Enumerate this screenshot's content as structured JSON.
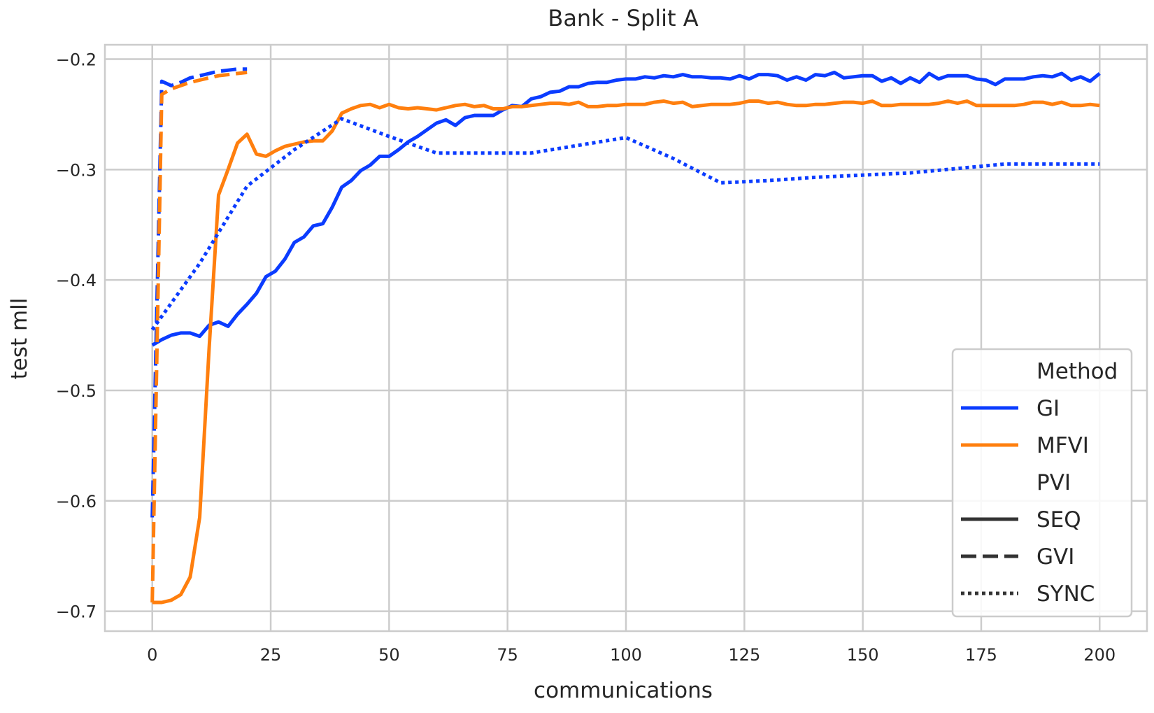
{
  "chart_data": {
    "type": "line",
    "title": "Bank - Split A",
    "xlabel": "communications",
    "ylabel": "test mll",
    "xlim": [
      -10,
      210
    ],
    "ylim": [
      -0.718,
      -0.187
    ],
    "xticks": [
      0,
      25,
      50,
      75,
      100,
      125,
      150,
      175,
      200
    ],
    "xtick_labels": [
      "0",
      "25",
      "50",
      "75",
      "100",
      "125",
      "150",
      "175",
      "200"
    ],
    "yticks": [
      -0.2,
      -0.3,
      -0.4,
      -0.5,
      -0.6,
      -0.7
    ],
    "ytick_labels": [
      "−0.2",
      "−0.3",
      "−0.4",
      "−0.5",
      "−0.6",
      "−0.7"
    ],
    "grid": true,
    "legend": {
      "position": "lower-right",
      "entries": [
        {
          "label": "Method",
          "kind": "header"
        },
        {
          "label": "GI",
          "kind": "color",
          "color": "#0b3cff"
        },
        {
          "label": "MFVI",
          "kind": "color",
          "color": "#ff7f0e"
        },
        {
          "label": "PVI",
          "kind": "header"
        },
        {
          "label": "SEQ",
          "kind": "style",
          "style": "solid"
        },
        {
          "label": "GVI",
          "kind": "style",
          "style": "dashed"
        },
        {
          "label": "SYNC",
          "kind": "style",
          "style": "dotted"
        }
      ]
    },
    "colors": {
      "GI": "#0b3cff",
      "MFVI": "#ff7f0e",
      "style_sample": "#333333",
      "grid": "#cccccc"
    },
    "series": [
      {
        "method": "GI",
        "pvi": "SEQ",
        "color": "#0b3cff",
        "style": "solid",
        "x": [
          0,
          2,
          4,
          6,
          8,
          10,
          12,
          14,
          16,
          18,
          20,
          22,
          24,
          26,
          28,
          30,
          32,
          34,
          36,
          38,
          40,
          42,
          44,
          46,
          48,
          50,
          52,
          54,
          56,
          58,
          60,
          62,
          64,
          66,
          68,
          70,
          72,
          74,
          76,
          78,
          80,
          82,
          84,
          86,
          88,
          90,
          92,
          94,
          96,
          98,
          100,
          102,
          104,
          106,
          108,
          110,
          112,
          114,
          116,
          118,
          120,
          122,
          124,
          126,
          128,
          130,
          132,
          134,
          136,
          138,
          140,
          142,
          144,
          146,
          148,
          150,
          152,
          154,
          156,
          158,
          160,
          162,
          164,
          166,
          168,
          170,
          172,
          174,
          176,
          178,
          180,
          182,
          184,
          186,
          188,
          190,
          192,
          194,
          196,
          198,
          200
        ],
        "y": [
          -0.459,
          -0.454,
          -0.45,
          -0.448,
          -0.448,
          -0.451,
          -0.441,
          -0.438,
          -0.442,
          -0.431,
          -0.422,
          -0.412,
          -0.397,
          -0.392,
          -0.381,
          -0.366,
          -0.361,
          -0.351,
          -0.349,
          -0.334,
          -0.316,
          -0.31,
          -0.301,
          -0.296,
          -0.288,
          -0.288,
          -0.282,
          -0.275,
          -0.27,
          -0.264,
          -0.258,
          -0.255,
          -0.26,
          -0.253,
          -0.251,
          -0.251,
          -0.251,
          -0.246,
          -0.242,
          -0.243,
          -0.236,
          -0.234,
          -0.23,
          -0.229,
          -0.225,
          -0.225,
          -0.222,
          -0.221,
          -0.221,
          -0.219,
          -0.218,
          -0.218,
          -0.216,
          -0.217,
          -0.215,
          -0.216,
          -0.214,
          -0.216,
          -0.216,
          -0.217,
          -0.217,
          -0.218,
          -0.215,
          -0.218,
          -0.214,
          -0.214,
          -0.215,
          -0.219,
          -0.216,
          -0.219,
          -0.214,
          -0.215,
          -0.212,
          -0.217,
          -0.216,
          -0.215,
          -0.215,
          -0.22,
          -0.217,
          -0.222,
          -0.217,
          -0.221,
          -0.213,
          -0.218,
          -0.215,
          -0.215,
          -0.215,
          -0.218,
          -0.219,
          -0.223,
          -0.218,
          -0.218,
          -0.218,
          -0.216,
          -0.215,
          -0.216,
          -0.213,
          -0.219,
          -0.216,
          -0.22,
          -0.213
        ]
      },
      {
        "method": "MFVI",
        "pvi": "SEQ",
        "color": "#ff7f0e",
        "style": "solid",
        "x": [
          0,
          2,
          4,
          6,
          8,
          10,
          12,
          14,
          16,
          18,
          20,
          22,
          24,
          26,
          28,
          30,
          32,
          34,
          36,
          38,
          40,
          42,
          44,
          46,
          48,
          50,
          52,
          54,
          56,
          58,
          60,
          62,
          64,
          66,
          68,
          70,
          72,
          74,
          76,
          78,
          80,
          82,
          84,
          86,
          88,
          90,
          92,
          94,
          96,
          98,
          100,
          102,
          104,
          106,
          108,
          110,
          112,
          114,
          116,
          118,
          120,
          122,
          124,
          126,
          128,
          130,
          132,
          134,
          136,
          138,
          140,
          142,
          144,
          146,
          148,
          150,
          152,
          154,
          156,
          158,
          160,
          162,
          164,
          166,
          168,
          170,
          172,
          174,
          176,
          178,
          180,
          182,
          184,
          186,
          188,
          190,
          192,
          194,
          196,
          198,
          200
        ],
        "y": [
          -0.692,
          -0.692,
          -0.69,
          -0.685,
          -0.669,
          -0.615,
          -0.462,
          -0.323,
          -0.3,
          -0.276,
          -0.268,
          -0.286,
          -0.288,
          -0.283,
          -0.279,
          -0.277,
          -0.275,
          -0.274,
          -0.274,
          -0.265,
          -0.249,
          -0.245,
          -0.242,
          -0.241,
          -0.244,
          -0.241,
          -0.244,
          -0.245,
          -0.244,
          -0.245,
          -0.246,
          -0.244,
          -0.242,
          -0.241,
          -0.243,
          -0.242,
          -0.245,
          -0.245,
          -0.243,
          -0.243,
          -0.242,
          -0.241,
          -0.24,
          -0.24,
          -0.241,
          -0.239,
          -0.243,
          -0.243,
          -0.242,
          -0.242,
          -0.241,
          -0.241,
          -0.241,
          -0.239,
          -0.238,
          -0.24,
          -0.239,
          -0.243,
          -0.242,
          -0.241,
          -0.241,
          -0.241,
          -0.24,
          -0.238,
          -0.238,
          -0.24,
          -0.239,
          -0.241,
          -0.242,
          -0.242,
          -0.241,
          -0.241,
          -0.24,
          -0.239,
          -0.239,
          -0.24,
          -0.238,
          -0.242,
          -0.242,
          -0.241,
          -0.241,
          -0.241,
          -0.241,
          -0.24,
          -0.238,
          -0.24,
          -0.238,
          -0.242,
          -0.242,
          -0.242,
          -0.242,
          -0.242,
          -0.241,
          -0.239,
          -0.239,
          -0.241,
          -0.239,
          -0.242,
          -0.242,
          -0.241,
          -0.242
        ]
      },
      {
        "method": "GI",
        "pvi": "GVI",
        "color": "#0b3cff",
        "style": "dashed",
        "x": [
          0,
          2,
          4,
          6,
          8,
          10,
          12,
          14,
          16,
          18,
          20
        ],
        "y": [
          -0.615,
          -0.22,
          -0.224,
          -0.221,
          -0.217,
          -0.215,
          -0.213,
          -0.211,
          -0.21,
          -0.209,
          -0.209
        ]
      },
      {
        "method": "MFVI",
        "pvi": "GVI",
        "color": "#ff7f0e",
        "style": "dashed",
        "x": [
          0,
          2,
          4,
          6,
          8,
          10,
          12,
          14,
          16,
          18,
          20
        ],
        "y": [
          -0.692,
          -0.232,
          -0.227,
          -0.224,
          -0.221,
          -0.219,
          -0.217,
          -0.215,
          -0.214,
          -0.213,
          -0.212
        ]
      },
      {
        "method": "GI",
        "pvi": "SYNC",
        "color": "#0b3cff",
        "style": "dotted",
        "x": [
          0,
          10,
          20,
          30,
          40,
          50,
          60,
          70,
          80,
          90,
          100,
          110,
          120,
          130,
          140,
          150,
          160,
          170,
          180,
          190,
          200
        ],
        "y": [
          -0.445,
          -0.385,
          -0.315,
          -0.282,
          -0.254,
          -0.27,
          -0.285,
          -0.285,
          -0.285,
          -0.278,
          -0.271,
          -0.29,
          -0.312,
          -0.31,
          -0.307,
          -0.305,
          -0.303,
          -0.299,
          -0.295,
          -0.295,
          -0.295
        ]
      }
    ]
  }
}
